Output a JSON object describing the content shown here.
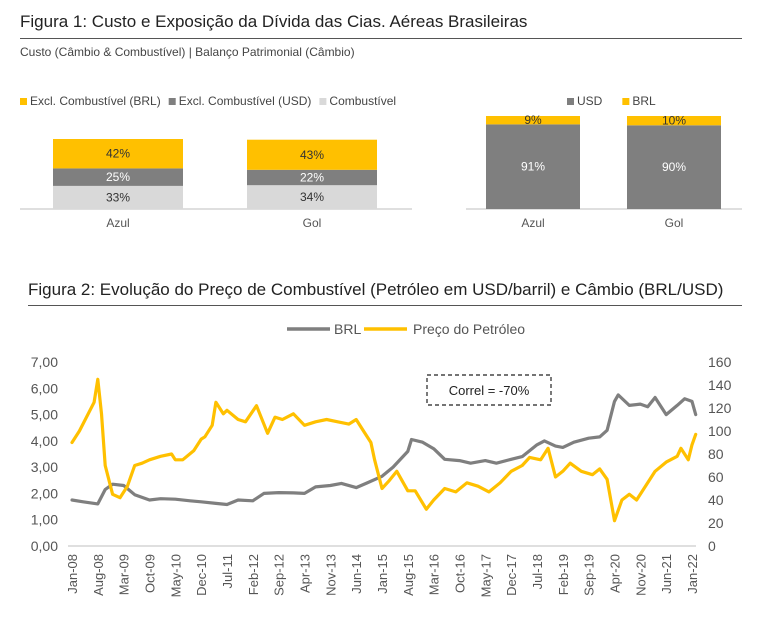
{
  "figure1": {
    "title": "Figura 1: Custo e Exposição da Dívida das Cias. Aéreas Brasileiras",
    "subtitle": "Custo (Câmbio & Combustível) | Balanço Patrimonial (Câmbio)"
  },
  "figure2": {
    "title": "Figura 2: Evolução do Preço de Combustível (Petróleo em USD/barril) e Câmbio (BRL/USD)"
  },
  "colors": {
    "yellow": "#FFC000",
    "dark_gray": "#7F7F7F",
    "light_gray": "#D9D9D9",
    "axis": "#BFBFBF"
  },
  "chart_data": [
    {
      "type": "bar",
      "stacked": true,
      "normalized": true,
      "categories": [
        "Azul",
        "Gol"
      ],
      "series": [
        {
          "name": "Excl. Combustível (BRL)",
          "color": "#FFC000",
          "values": [
            42,
            43
          ],
          "labels": [
            "42%",
            "43%"
          ]
        },
        {
          "name": "Excl. Combustível (USD)",
          "color": "#7F7F7F",
          "values": [
            25,
            22
          ],
          "labels": [
            "25%",
            "22%"
          ]
        },
        {
          "name": "Combustível",
          "color": "#D9D9D9",
          "values": [
            33,
            34
          ],
          "labels": [
            "33%",
            "34%"
          ]
        }
      ],
      "legend": "top"
    },
    {
      "type": "bar",
      "stacked": true,
      "normalized": true,
      "categories": [
        "Azul",
        "Gol"
      ],
      "series": [
        {
          "name": "USD",
          "color": "#7F7F7F",
          "values": [
            91,
            90
          ],
          "labels": [
            "91%",
            "90%"
          ]
        },
        {
          "name": "BRL",
          "color": "#FFC000",
          "values": [
            9,
            10
          ],
          "labels": [
            "9%",
            "10%"
          ]
        }
      ],
      "legend": "top"
    },
    {
      "type": "line",
      "x_ticks": [
        "Jan-08",
        "Aug-08",
        "Mar-09",
        "Oct-09",
        "May-10",
        "Dec-10",
        "Jul-11",
        "Feb-12",
        "Sep-12",
        "Apr-13",
        "Nov-13",
        "Jun-14",
        "Jan-15",
        "Aug-15",
        "Mar-16",
        "Oct-16",
        "May-17",
        "Dec-17",
        "Jul-18",
        "Feb-19",
        "Sep-19",
        "Apr-20",
        "Nov-20",
        "Jun-21",
        "Jan-22"
      ],
      "y_left": {
        "ticks": [
          "0,00",
          "1,00",
          "2,00",
          "3,00",
          "4,00",
          "5,00",
          "6,00",
          "7,00"
        ],
        "range": [
          0,
          7
        ]
      },
      "y_right": {
        "ticks": [
          "0",
          "20",
          "40",
          "60",
          "80",
          "100",
          "120",
          "140",
          "160"
        ],
        "range": [
          0,
          160
        ]
      },
      "annotation": "Correl = -70%",
      "legend": "top",
      "series": [
        {
          "name": "BRL",
          "axis": "left",
          "color": "#7F7F7F",
          "x": [
            "Jan-08",
            "Apr-08",
            "Aug-08",
            "Oct-08",
            "Dec-08",
            "Mar-09",
            "Jun-09",
            "Oct-09",
            "Jan-10",
            "May-10",
            "Sep-10",
            "Dec-10",
            "Apr-11",
            "Jul-11",
            "Oct-11",
            "Feb-12",
            "May-12",
            "Sep-12",
            "Jan-13",
            "Apr-13",
            "Jul-13",
            "Nov-13",
            "Feb-14",
            "Jun-14",
            "Sep-14",
            "Jan-15",
            "Apr-15",
            "Aug-15",
            "Sep-15",
            "Dec-15",
            "Mar-16",
            "Jun-16",
            "Oct-16",
            "Jan-17",
            "May-17",
            "Aug-17",
            "Dec-17",
            "Mar-18",
            "Jul-18",
            "Sep-18",
            "Dec-18",
            "Feb-19",
            "May-19",
            "Sep-19",
            "Dec-19",
            "Feb-20",
            "Apr-20",
            "May-20",
            "Aug-20",
            "Nov-20",
            "Jan-21",
            "Mar-21",
            "Jun-21",
            "Sep-21",
            "Nov-21",
            "Jan-22",
            "Feb-22"
          ],
          "y": [
            1.75,
            1.68,
            1.6,
            2.15,
            2.35,
            2.3,
            1.95,
            1.75,
            1.8,
            1.78,
            1.72,
            1.68,
            1.62,
            1.58,
            1.75,
            1.72,
            2.0,
            2.03,
            2.02,
            2.0,
            2.25,
            2.3,
            2.38,
            2.22,
            2.4,
            2.65,
            3.0,
            3.6,
            4.05,
            3.95,
            3.7,
            3.3,
            3.25,
            3.15,
            3.25,
            3.15,
            3.3,
            3.4,
            3.85,
            4.0,
            3.8,
            3.75,
            3.95,
            4.1,
            4.15,
            4.4,
            5.5,
            5.75,
            5.35,
            5.4,
            5.3,
            5.65,
            5.0,
            5.35,
            5.6,
            5.5,
            5.0
          ]
        },
        {
          "name": "Preço do Petróleo",
          "axis": "right",
          "color": "#FFC000",
          "x": [
            "Jan-08",
            "Mar-08",
            "Jul-08",
            "Aug-08",
            "Sep-08",
            "Oct-08",
            "Dec-08",
            "Feb-09",
            "Apr-09",
            "Jun-09",
            "Aug-09",
            "Oct-09",
            "Jan-10",
            "Apr-10",
            "May-10",
            "Jul-10",
            "Oct-10",
            "Dec-10",
            "Jan-11",
            "Mar-11",
            "Apr-11",
            "Jun-11",
            "Jul-11",
            "Oct-11",
            "Dec-11",
            "Mar-12",
            "Jun-12",
            "Aug-12",
            "Oct-12",
            "Jan-13",
            "Apr-13",
            "Jul-13",
            "Oct-13",
            "Jan-14",
            "Apr-14",
            "Jun-14",
            "Aug-14",
            "Oct-14",
            "Nov-14",
            "Jan-15",
            "Mar-15",
            "May-15",
            "Aug-15",
            "Oct-15",
            "Jan-16",
            "Mar-16",
            "Jun-16",
            "Sep-16",
            "Dec-16",
            "Mar-17",
            "Jun-17",
            "Sep-17",
            "Dec-17",
            "Mar-18",
            "May-18",
            "Aug-18",
            "Oct-18",
            "Dec-18",
            "Feb-19",
            "Apr-19",
            "Jul-19",
            "Oct-19",
            "Dec-19",
            "Feb-20",
            "Apr-20",
            "Jun-20",
            "Aug-20",
            "Oct-20",
            "Dec-20",
            "Mar-21",
            "Jun-21",
            "Sep-21",
            "Oct-21",
            "Dec-21",
            "Jan-22",
            "Feb-22"
          ],
          "y": [
            90,
            100,
            125,
            145,
            115,
            70,
            45,
            42,
            52,
            70,
            72,
            75,
            78,
            80,
            75,
            75,
            83,
            93,
            95,
            105,
            125,
            115,
            118,
            110,
            108,
            122,
            98,
            112,
            110,
            115,
            105,
            108,
            110,
            108,
            106,
            110,
            100,
            90,
            75,
            50,
            57,
            65,
            48,
            48,
            32,
            40,
            50,
            47,
            55,
            52,
            47,
            55,
            65,
            70,
            77,
            75,
            85,
            60,
            65,
            72,
            65,
            62,
            67,
            58,
            22,
            40,
            45,
            40,
            50,
            65,
            73,
            78,
            85,
            75,
            88,
            97
          ]
        }
      ]
    }
  ]
}
